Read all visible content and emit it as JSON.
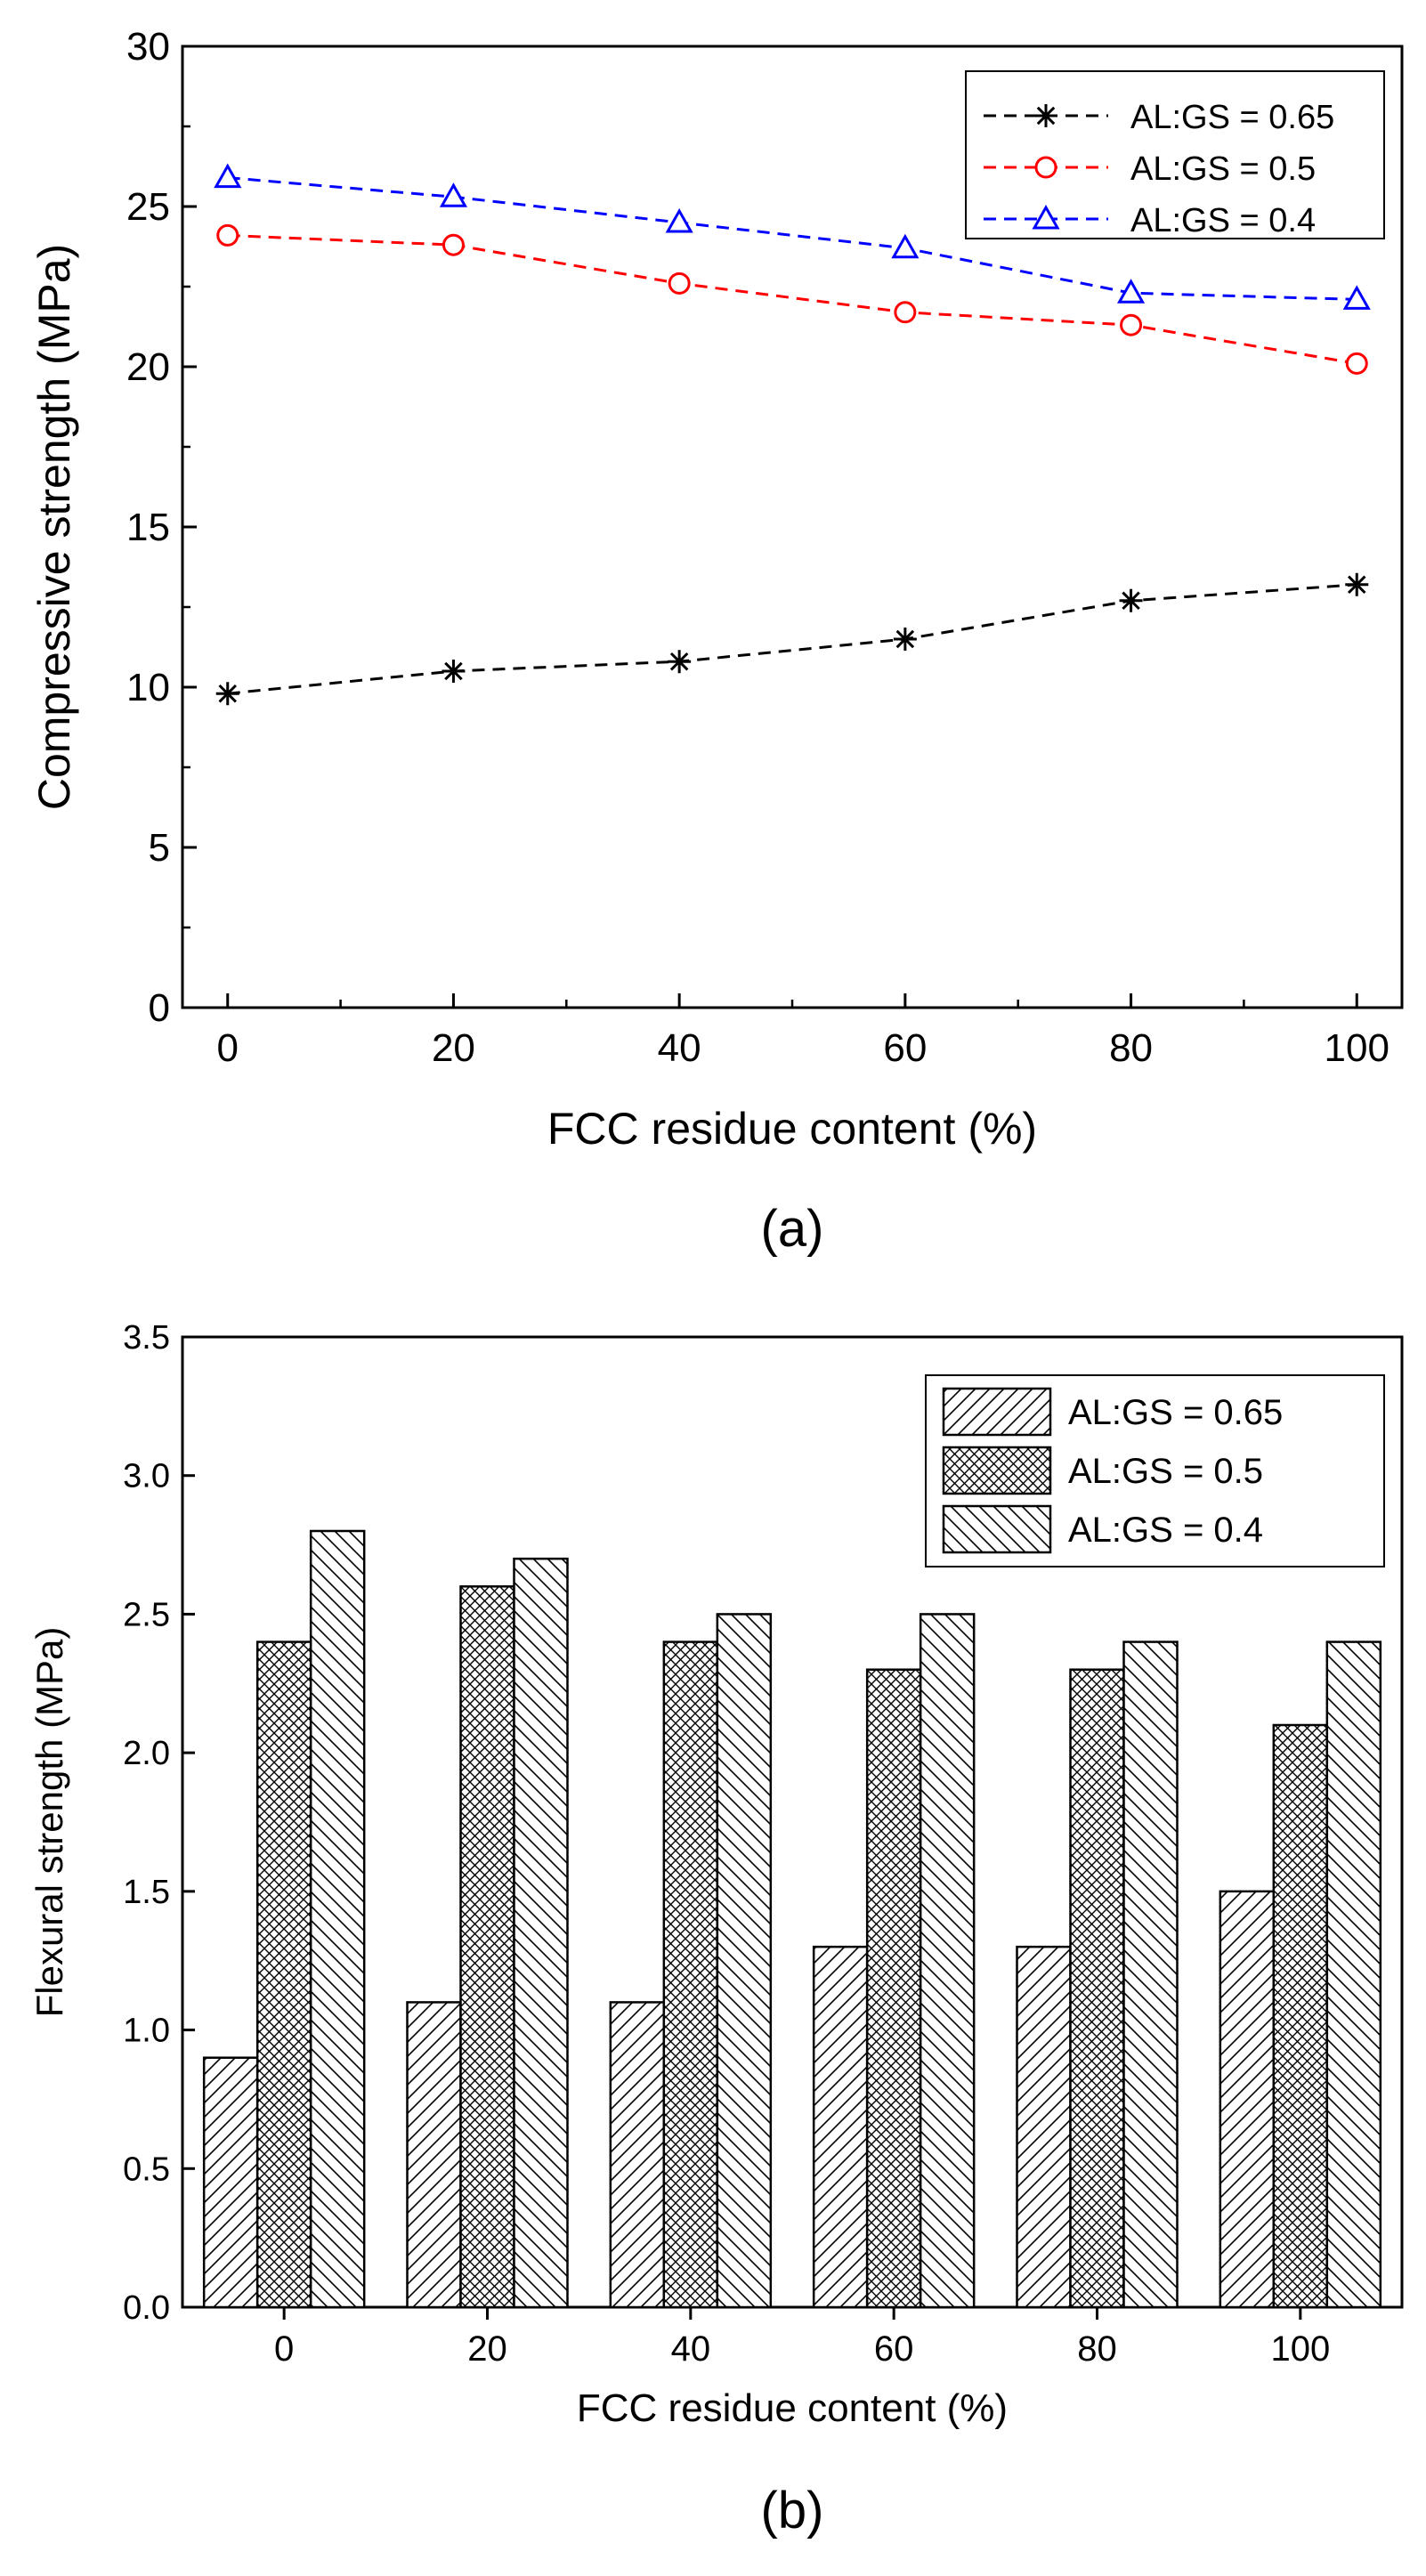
{
  "chart_data": [
    {
      "type": "line",
      "panel_label": "(a)",
      "xlabel": "FCC residue content (%)",
      "ylabel": "Compressive strength (MPa)",
      "x": [
        0,
        20,
        40,
        60,
        80,
        100
      ],
      "xticks": [
        "0",
        "20",
        "40",
        "60",
        "80",
        "100"
      ],
      "yticks": [
        "0",
        "5",
        "10",
        "15",
        "20",
        "25",
        "30"
      ],
      "xlim": [
        -4,
        104
      ],
      "ylim": [
        0,
        30
      ],
      "legend_position": "top-right",
      "series": [
        {
          "name": "AL:GS = 0.65",
          "color": "#000000",
          "marker": "asterisk",
          "values": [
            9.8,
            10.5,
            10.8,
            11.5,
            12.7,
            13.2
          ]
        },
        {
          "name": "AL:GS = 0.5",
          "color": "#ff0000",
          "marker": "circle",
          "values": [
            24.1,
            23.8,
            22.6,
            21.7,
            21.3,
            20.1
          ]
        },
        {
          "name": "AL:GS = 0.4",
          "color": "#0000ff",
          "marker": "triangle",
          "values": [
            25.9,
            25.3,
            24.5,
            23.7,
            22.3,
            22.1
          ]
        }
      ]
    },
    {
      "type": "bar",
      "panel_label": "(b)",
      "xlabel": "FCC residue content (%)",
      "ylabel": "Flexural strength (MPa)",
      "categories": [
        "0",
        "20",
        "40",
        "60",
        "80",
        "100"
      ],
      "yticks": [
        "0.0",
        "0.5",
        "1.0",
        "1.5",
        "2.0",
        "2.5",
        "3.0",
        "3.5"
      ],
      "ylim": [
        0,
        3.5
      ],
      "legend_position": "top-right",
      "series": [
        {
          "name": "AL:GS = 0.65",
          "pattern": "diag-right",
          "values": [
            0.9,
            1.1,
            1.1,
            1.3,
            1.3,
            1.5
          ]
        },
        {
          "name": "AL:GS = 0.5",
          "pattern": "crosshatch",
          "values": [
            2.4,
            2.6,
            2.4,
            2.3,
            2.3,
            2.1
          ]
        },
        {
          "name": "AL:GS = 0.4",
          "pattern": "diag-left",
          "values": [
            2.8,
            2.7,
            2.5,
            2.5,
            2.4,
            2.4
          ]
        }
      ]
    }
  ]
}
